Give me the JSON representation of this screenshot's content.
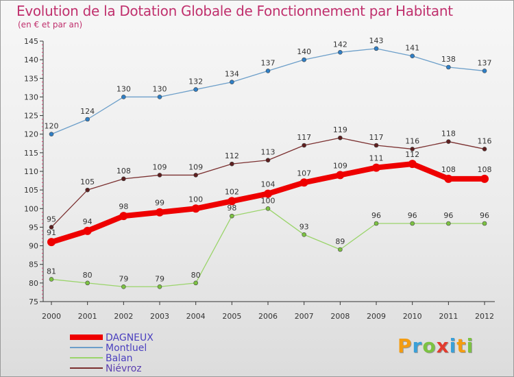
{
  "header": {
    "title": "Evolution de la Dotation Globale de Fonctionnement par Habitant",
    "subtitle": "(en € et par an)"
  },
  "logo": {
    "text": "Proxiti",
    "letters": [
      {
        "ch": "P",
        "color": "#f39c12"
      },
      {
        "ch": "r",
        "color": "#3aa0d8"
      },
      {
        "ch": "o",
        "color": "#7cc242"
      },
      {
        "ch": "x",
        "color": "#e23b2e"
      },
      {
        "ch": "i",
        "color": "#3aa0d8"
      },
      {
        "ch": "t",
        "color": "#f39c12"
      },
      {
        "ch": "i",
        "color": "#7cc242"
      }
    ]
  },
  "chart_data": {
    "type": "line",
    "title": "Evolution de la Dotation Globale de Fonctionnement par Habitant",
    "subtitle": "(en € et par an)",
    "x": [
      "2000",
      "2001",
      "2002",
      "2003",
      "2004",
      "2005",
      "2006",
      "2007",
      "2008",
      "2009",
      "2010",
      "2011",
      "2012"
    ],
    "ylim": [
      75,
      145
    ],
    "yticks": [
      75,
      80,
      85,
      90,
      95,
      100,
      105,
      110,
      115,
      120,
      125,
      130,
      135,
      140,
      145
    ],
    "grid": false,
    "legend_position": "bottom-left",
    "series": [
      {
        "name": "DAGNEUX",
        "color": "#ee0000",
        "markerColor": "#ee0000",
        "emphasis": true,
        "values": [
          91,
          94,
          98,
          99,
          100,
          102,
          104,
          107,
          109,
          111,
          112,
          108,
          108
        ]
      },
      {
        "name": "Montluel",
        "color": "#6b9ec9",
        "markerColor": "#2f7fc6",
        "emphasis": false,
        "values": [
          120,
          124,
          130,
          130,
          132,
          134,
          137,
          140,
          142,
          143,
          141,
          138,
          137
        ]
      },
      {
        "name": "Balan",
        "color": "#9ad46a",
        "markerColor": "#7cc242",
        "emphasis": false,
        "values": [
          81,
          80,
          79,
          79,
          80,
          98,
          100,
          93,
          89,
          96,
          96,
          96,
          96
        ]
      },
      {
        "name": "Niévroz",
        "color": "#7a2f2f",
        "markerColor": "#5e1f1f",
        "emphasis": false,
        "values": [
          95,
          105,
          108,
          109,
          109,
          112,
          113,
          117,
          119,
          117,
          116,
          118,
          116
        ]
      }
    ]
  }
}
